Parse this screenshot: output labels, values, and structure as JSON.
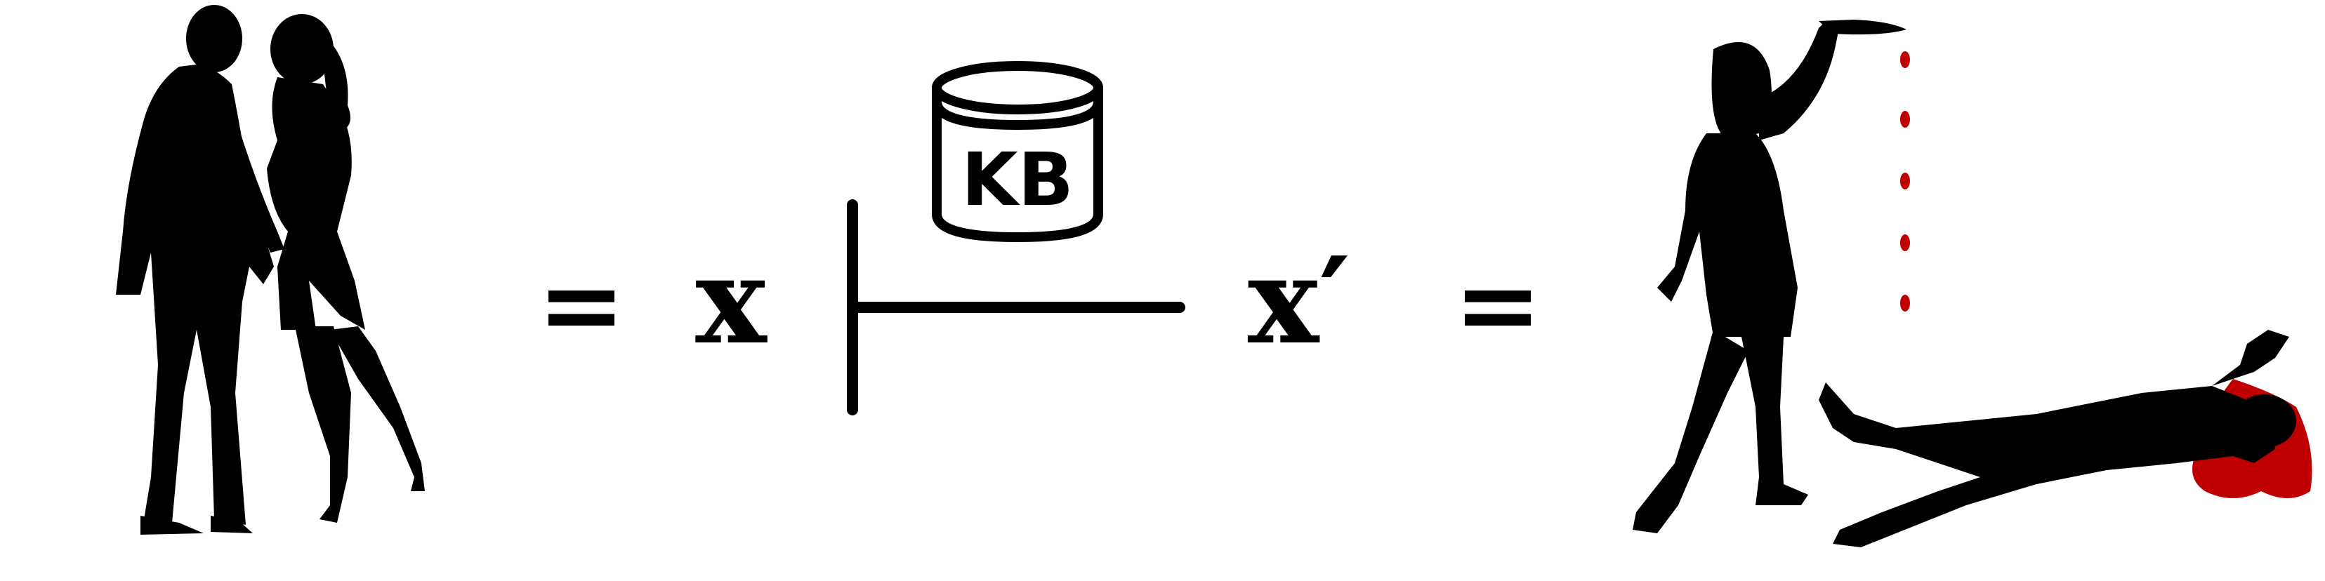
{
  "diagram": {
    "left_figure": "couple-kissing-silhouette",
    "right_figure": "stabbing-scene-silhouette",
    "equals_left": "=",
    "input_symbol": "x",
    "turnstile": "⊢",
    "knowledge_base_label": "KB",
    "output_symbol": "x′",
    "equals_right": "=",
    "colors": {
      "ink": "#000000",
      "blood": "#c00000",
      "background": "#ffffff"
    }
  }
}
